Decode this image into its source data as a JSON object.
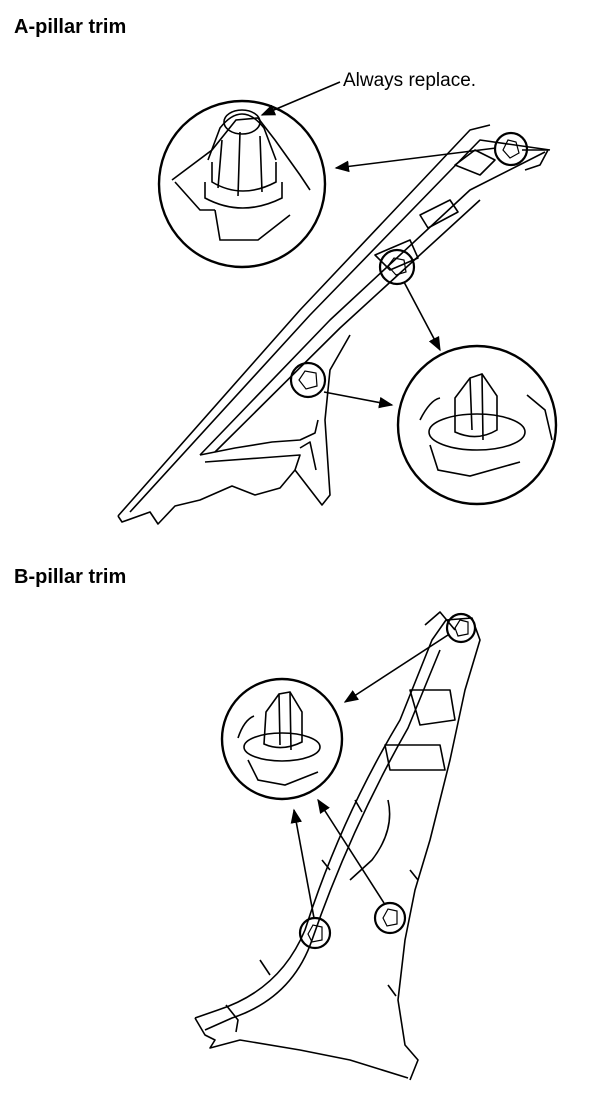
{
  "sections": [
    {
      "title": "A-pillar trim",
      "callouts": [
        "Always replace."
      ]
    },
    {
      "title": "B-pillar trim"
    }
  ],
  "colors": {
    "ink": "#000000",
    "paper": "#ffffff"
  },
  "icons": [
    "clip-detail-icon",
    "arrow-icon"
  ]
}
